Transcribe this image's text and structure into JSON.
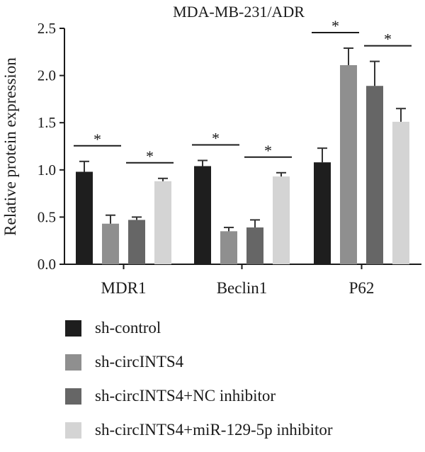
{
  "chart_data": {
    "type": "bar",
    "title": "MDA-MB-231/ADR",
    "xlabel": "",
    "ylabel": "Relative protein expression",
    "ylim": [
      0,
      2.5
    ],
    "yticks": [
      "0.0",
      "0.5",
      "1.0",
      "1.5",
      "2.0",
      "2.5"
    ],
    "categories": [
      "MDR1",
      "Beclin1",
      "P62"
    ],
    "series": [
      {
        "name": "sh-control",
        "color": "#1e1e1e",
        "values": [
          0.98,
          1.04,
          1.08
        ],
        "errors": [
          0.11,
          0.06,
          0.15
        ]
      },
      {
        "name": "sh-circINTS4",
        "color": "#8f8f8f",
        "values": [
          0.43,
          0.35,
          2.11
        ],
        "errors": [
          0.09,
          0.04,
          0.18
        ]
      },
      {
        "name": "sh-circINTS4+NC inhibitor",
        "color": "#666666",
        "values": [
          0.47,
          0.39,
          1.89
        ],
        "errors": [
          0.03,
          0.08,
          0.26
        ]
      },
      {
        "name": "sh-circINTS4+miR-129-5p inhibitor",
        "color": "#d4d4d4",
        "values": [
          0.88,
          0.93,
          1.51
        ],
        "errors": [
          0.03,
          0.04,
          0.14
        ]
      }
    ],
    "significance": [
      {
        "category": 0,
        "from": 0,
        "to": 1,
        "label": "*"
      },
      {
        "category": 0,
        "from": 2,
        "to": 3,
        "label": "*"
      },
      {
        "category": 1,
        "from": 0,
        "to": 1,
        "label": "*"
      },
      {
        "category": 1,
        "from": 2,
        "to": 3,
        "label": "*"
      },
      {
        "category": 2,
        "from": 0,
        "to": 1,
        "label": "*"
      },
      {
        "category": 2,
        "from": 2,
        "to": 3,
        "label": "*"
      }
    ],
    "legend_position": "bottom"
  }
}
